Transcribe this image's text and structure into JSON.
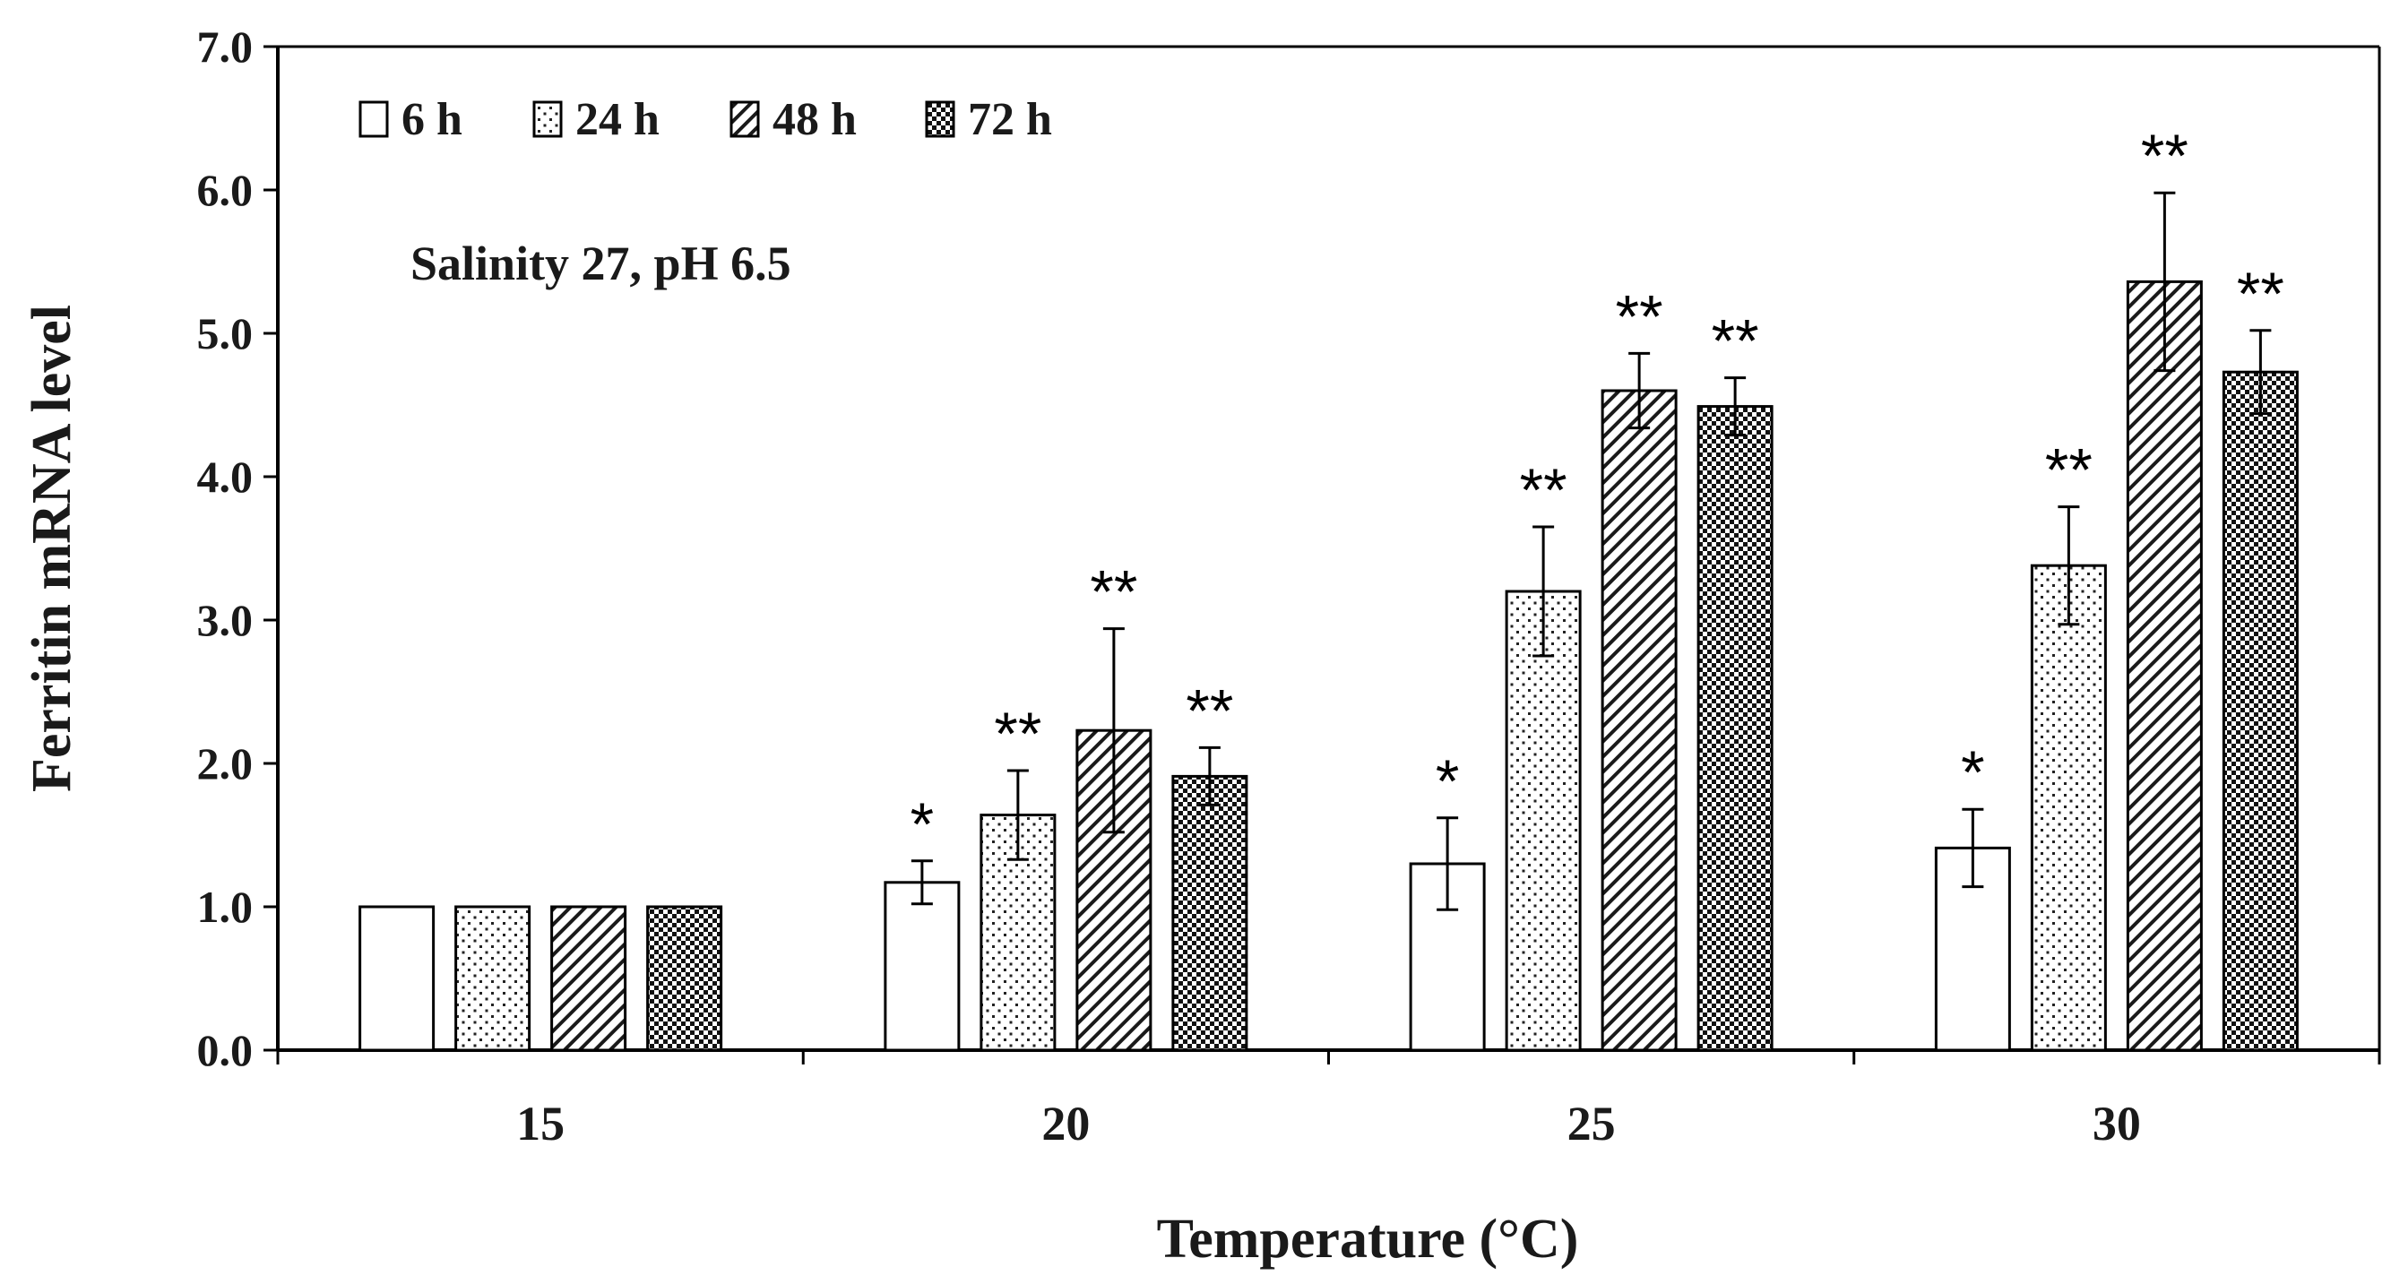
{
  "chart_data": {
    "type": "bar",
    "title": "",
    "annotation": "Salinity 27, pH 6.5",
    "xlabel": "Temperature (°C)",
    "ylabel": "Ferritin mRNA level",
    "ylim": [
      0,
      7
    ],
    "ytick_labels": [
      "0.0",
      "1.0",
      "2.0",
      "3.0",
      "4.0",
      "5.0",
      "6.0",
      "7.0"
    ],
    "categories": [
      "15",
      "20",
      "25",
      "30"
    ],
    "legend_position": "top-left",
    "series": [
      {
        "name": "6 h",
        "pattern": "open",
        "values": [
          1.0,
          1.17,
          1.3,
          1.41
        ],
        "errors": [
          0,
          0.15,
          0.32,
          0.27
        ],
        "significance": [
          "",
          "*",
          "*",
          "*"
        ]
      },
      {
        "name": "24 h",
        "pattern": "dots",
        "values": [
          1.0,
          1.64,
          3.2,
          3.38
        ],
        "errors": [
          0,
          0.31,
          0.45,
          0.41
        ],
        "significance": [
          "",
          "**",
          "**",
          "**"
        ]
      },
      {
        "name": "48 h",
        "pattern": "diagonal",
        "values": [
          1.0,
          2.23,
          4.6,
          5.36
        ],
        "errors": [
          0,
          0.71,
          0.26,
          0.62
        ],
        "significance": [
          "",
          "**",
          "**",
          "**"
        ]
      },
      {
        "name": "72 h",
        "pattern": "checker",
        "values": [
          1.0,
          1.91,
          4.49,
          4.73
        ],
        "errors": [
          0,
          0.2,
          0.2,
          0.29
        ],
        "significance": [
          "",
          "**",
          "**",
          "**"
        ]
      }
    ]
  }
}
